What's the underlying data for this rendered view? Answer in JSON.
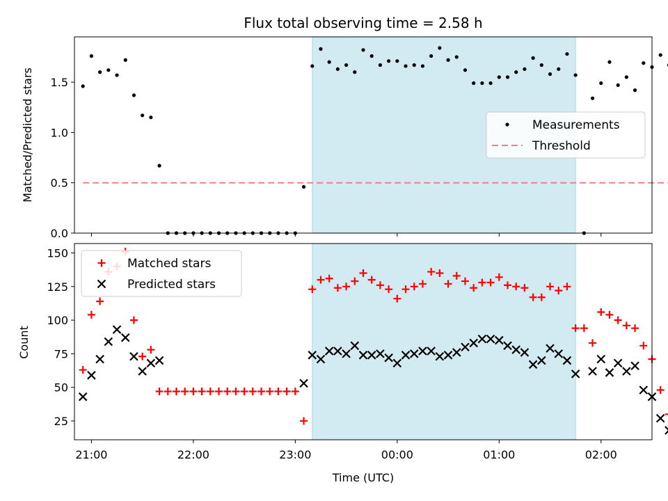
{
  "title": "Flux total observing time = 2.58 h",
  "colors": {
    "measurement": "#000000",
    "threshold": "#f08080",
    "matched": "#ff0000",
    "predicted": "#000000",
    "shade": "#add8e6"
  },
  "chart_data": [
    {
      "type": "scatter",
      "panel": "top",
      "ylabel": "Matched/Predicted stars",
      "ylim": [
        0,
        1.95
      ],
      "yticks": [
        0.0,
        0.5,
        1.0,
        1.5
      ],
      "ytick_labels": [
        "0.0",
        "0.5",
        "1.0",
        "1.5"
      ],
      "xlim": [
        "20:50",
        "02:30"
      ],
      "shaded_x": [
        "23:10",
        "01:45"
      ],
      "legend": {
        "placement": "center-right",
        "entries": [
          "Measurements",
          "Threshold"
        ]
      },
      "series": [
        {
          "name": "Measurements",
          "x": [
            "20:55",
            "21:00",
            "21:05",
            "21:10",
            "21:15",
            "21:20",
            "21:25",
            "21:30",
            "21:35",
            "21:40",
            "21:45",
            "21:50",
            "21:55",
            "22:00",
            "22:05",
            "22:10",
            "22:15",
            "22:20",
            "22:25",
            "22:30",
            "22:35",
            "22:40",
            "22:45",
            "22:50",
            "22:55",
            "23:00",
            "23:05",
            "23:10",
            "23:15",
            "23:20",
            "23:25",
            "23:30",
            "23:35",
            "23:40",
            "23:45",
            "23:50",
            "23:55",
            "00:00",
            "00:05",
            "00:10",
            "00:15",
            "00:20",
            "00:25",
            "00:30",
            "00:35",
            "00:40",
            "00:45",
            "00:50",
            "00:55",
            "01:00",
            "01:05",
            "01:10",
            "01:15",
            "01:20",
            "01:25",
            "01:30",
            "01:35",
            "01:40",
            "01:45",
            "01:50",
            "01:55",
            "02:00",
            "02:05",
            "02:10",
            "02:15",
            "02:20",
            "02:25",
            "02:30",
            "02:35",
            "02:40",
            "02:45"
          ],
          "y": [
            1.46,
            1.76,
            1.6,
            1.62,
            1.57,
            1.72,
            1.37,
            1.17,
            1.15,
            0.67,
            0.0,
            0.0,
            0.0,
            0.0,
            0.0,
            0.0,
            0.0,
            0.0,
            0.0,
            0.0,
            0.0,
            0.0,
            0.0,
            0.0,
            0.0,
            0.0,
            0.46,
            1.66,
            1.83,
            1.7,
            1.63,
            1.67,
            1.6,
            1.82,
            1.76,
            1.67,
            1.71,
            1.71,
            1.66,
            1.67,
            1.66,
            1.76,
            1.84,
            1.72,
            1.75,
            1.62,
            1.49,
            1.49,
            1.49,
            1.55,
            1.55,
            1.6,
            1.63,
            1.74,
            1.67,
            1.58,
            1.63,
            1.78,
            1.57,
            0.0,
            1.34,
            1.49,
            1.7,
            1.47,
            1.55,
            1.42,
            1.69,
            1.65,
            1.77,
            1.67,
            null
          ]
        },
        {
          "name": "Threshold",
          "style": "dashed",
          "x": [
            "20:55",
            "02:40"
          ],
          "y": [
            0.5,
            0.5
          ]
        }
      ]
    },
    {
      "type": "scatter",
      "panel": "bottom",
      "xlabel": "Time (UTC)",
      "ylabel": "Count",
      "ylim": [
        11,
        157
      ],
      "yticks": [
        25,
        50,
        75,
        100,
        125,
        150
      ],
      "ytick_labels": [
        "25",
        "50",
        "75",
        "100",
        "125",
        "150"
      ],
      "xlim": [
        "20:50",
        "02:30"
      ],
      "xticks": [
        "21:00",
        "22:00",
        "23:00",
        "00:00",
        "01:00",
        "02:00"
      ],
      "shaded_x": [
        "23:10",
        "01:45"
      ],
      "legend": {
        "placement": "top-left",
        "entries": [
          "Matched stars",
          "Predicted stars"
        ]
      },
      "series": [
        {
          "name": "Matched stars",
          "marker": "plus",
          "x": [
            "20:55",
            "21:00",
            "21:05",
            "21:10",
            "21:15",
            "21:20",
            "21:25",
            "21:30",
            "21:35",
            "21:40",
            "21:45",
            "21:50",
            "21:55",
            "22:00",
            "22:05",
            "22:10",
            "22:15",
            "22:20",
            "22:25",
            "22:30",
            "22:35",
            "22:40",
            "22:45",
            "22:50",
            "22:55",
            "23:00",
            "23:05",
            "23:10",
            "23:15",
            "23:20",
            "23:25",
            "23:30",
            "23:35",
            "23:40",
            "23:45",
            "23:50",
            "23:55",
            "00:00",
            "00:05",
            "00:10",
            "00:15",
            "00:20",
            "00:25",
            "00:30",
            "00:35",
            "00:40",
            "00:45",
            "00:50",
            "00:55",
            "01:00",
            "01:05",
            "01:10",
            "01:15",
            "01:20",
            "01:25",
            "01:30",
            "01:35",
            "01:40",
            "01:45",
            "01:50",
            "01:55",
            "02:00",
            "02:05",
            "02:10",
            "02:15",
            "02:20",
            "02:25",
            "02:30",
            "02:35",
            "02:40",
            "02:45"
          ],
          "y": [
            63,
            104,
            114,
            136,
            140,
            151,
            100,
            73,
            78,
            47,
            47,
            47,
            47,
            47,
            47,
            47,
            47,
            47,
            47,
            47,
            47,
            47,
            47,
            47,
            47,
            47,
            25,
            123,
            130,
            131,
            124,
            125,
            129,
            135,
            130,
            126,
            123,
            116,
            123,
            125,
            127,
            136,
            135,
            127,
            133,
            129,
            124,
            128,
            128,
            132,
            126,
            125,
            124,
            117,
            117,
            125,
            122,
            125,
            94,
            94,
            83,
            106,
            104,
            100,
            96,
            94,
            81,
            71,
            48,
            30,
            null
          ]
        },
        {
          "name": "Predicted stars",
          "marker": "x",
          "x": [
            "20:55",
            "21:00",
            "21:05",
            "21:10",
            "21:15",
            "21:20",
            "21:25",
            "21:30",
            "21:35",
            "21:40",
            "21:45",
            "21:50",
            "21:55",
            "22:00",
            "22:05",
            "22:10",
            "22:15",
            "22:20",
            "22:25",
            "22:30",
            "22:35",
            "22:40",
            "22:45",
            "22:50",
            "22:55",
            "23:00",
            "23:05",
            "23:10",
            "23:15",
            "23:20",
            "23:25",
            "23:30",
            "23:35",
            "23:40",
            "23:45",
            "23:50",
            "23:55",
            "00:00",
            "00:05",
            "00:10",
            "00:15",
            "00:20",
            "00:25",
            "00:30",
            "00:35",
            "00:40",
            "00:45",
            "00:50",
            "00:55",
            "01:00",
            "01:05",
            "01:10",
            "01:15",
            "01:20",
            "01:25",
            "01:30",
            "01:35",
            "01:40",
            "01:45",
            "01:50",
            "01:55",
            "02:00",
            "02:05",
            "02:10",
            "02:15",
            "02:20",
            "02:25",
            "02:30",
            "02:35",
            "02:40",
            "02:45"
          ],
          "y": [
            43,
            59,
            71,
            84,
            93,
            87,
            73,
            62,
            68,
            70,
            null,
            null,
            null,
            null,
            null,
            null,
            null,
            null,
            null,
            null,
            null,
            null,
            null,
            null,
            null,
            null,
            53,
            74,
            71,
            77,
            77,
            75,
            81,
            74,
            74,
            75,
            72,
            68,
            74,
            75,
            77,
            77,
            73,
            74,
            76,
            80,
            83,
            86,
            86,
            85,
            81,
            78,
            76,
            67,
            70,
            79,
            75,
            70,
            60,
            null,
            62,
            71,
            61,
            68,
            62,
            66,
            48,
            43,
            27,
            18,
            null
          ]
        }
      ]
    }
  ]
}
